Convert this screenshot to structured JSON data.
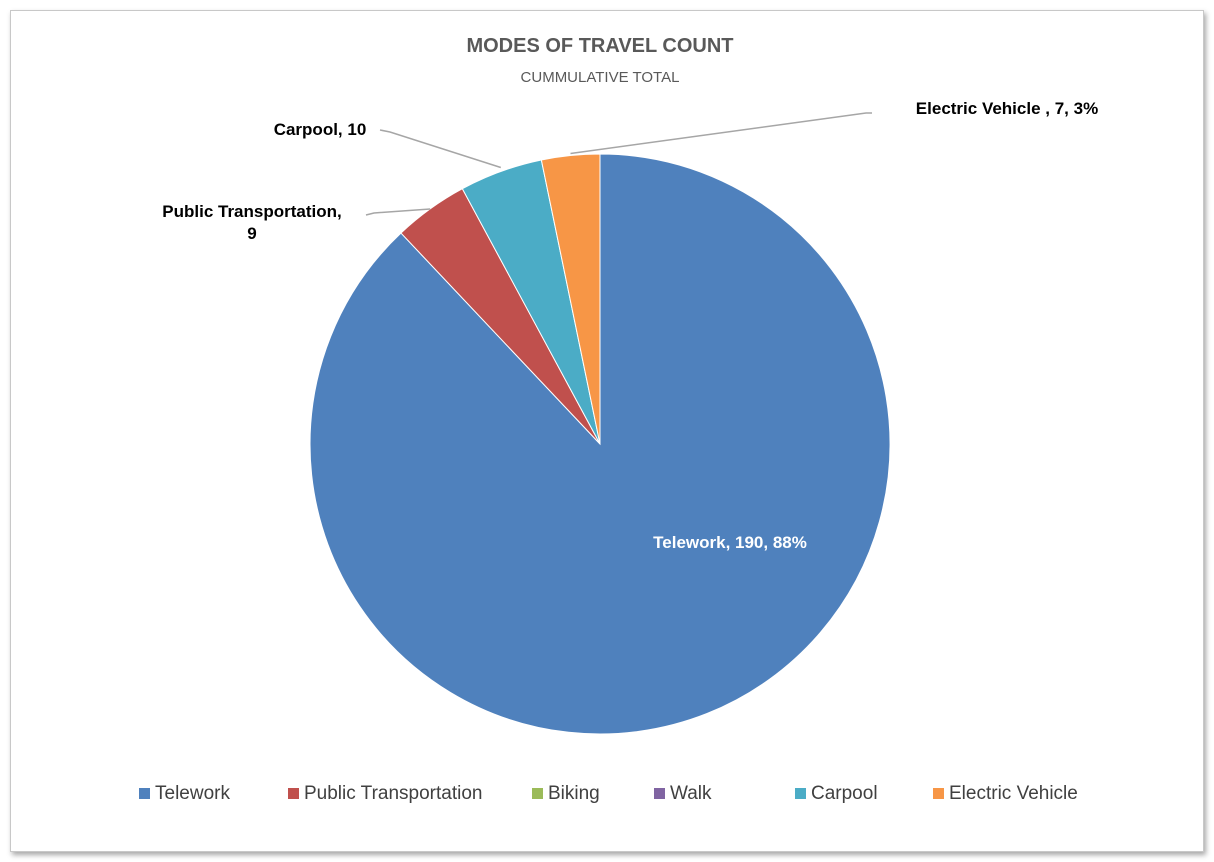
{
  "chart_data": {
    "type": "pie",
    "title": "MODES OF TRAVEL COUNT",
    "subtitle": "CUMMULATIVE TOTAL",
    "legend_position": "bottom",
    "categories": [
      "Telework",
      "Public Transportation",
      "Biking",
      "Walk",
      "Carpool",
      "Electric Vehicle"
    ],
    "values": [
      190,
      9,
      0,
      0,
      10,
      7
    ],
    "colors": [
      "#4F81BD",
      "#C0504D",
      "#9BBB59",
      "#8064A2",
      "#4BACC6",
      "#F79646"
    ],
    "data_labels": [
      {
        "category": "Telework",
        "lines": [
          "Telework, 190, 88%"
        ]
      },
      {
        "category": "Public Transportation",
        "lines": [
          "Public Transportation,",
          "9"
        ]
      },
      {
        "category": "Carpool",
        "lines": [
          "Carpool, 10"
        ]
      },
      {
        "category": "Electric Vehicle",
        "lines": [
          "Electric Vehicle , 7, 3%"
        ]
      }
    ]
  }
}
